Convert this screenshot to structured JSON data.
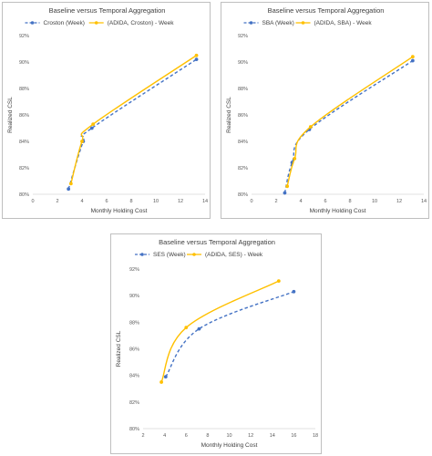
{
  "chart_data": [
    {
      "type": "line",
      "title": "Baseline versus Temporal Aggregation",
      "xlabel": "Monthly Holding Cost",
      "ylabel": "Realized CSL",
      "xlim": [
        0,
        14
      ],
      "ylim": [
        80,
        92
      ],
      "xticks": [
        0,
        2,
        4,
        6,
        8,
        10,
        12,
        14
      ],
      "yticks": [
        80,
        82,
        84,
        86,
        88,
        90,
        92
      ],
      "grid": false,
      "legend_position": "top",
      "series": [
        {
          "name": "Croston (Week)",
          "color": "#4472c4",
          "style": "dashed",
          "x": [
            2.9,
            4.1,
            4.8,
            13.3
          ],
          "y": [
            80.4,
            84.0,
            85.0,
            90.2
          ]
        },
        {
          "name": "(ADIDA, Croston) - Week",
          "color": "#ffc000",
          "style": "solid",
          "x": [
            3.1,
            4.0,
            4.9,
            13.3
          ],
          "y": [
            80.8,
            84.0,
            85.3,
            90.5
          ]
        }
      ]
    },
    {
      "type": "line",
      "title": "Baseline versus Temporal Aggregation",
      "xlabel": "Monthly Holding Cost",
      "ylabel": "Realized CSL",
      "xlim": [
        0,
        14
      ],
      "ylim": [
        80,
        92
      ],
      "xticks": [
        0,
        2,
        4,
        6,
        8,
        10,
        12,
        14
      ],
      "yticks": [
        80,
        82,
        84,
        86,
        88,
        90,
        92
      ],
      "grid": false,
      "legend_position": "top",
      "series": [
        {
          "name": "SBA (Week)",
          "color": "#4472c4",
          "style": "dashed",
          "x": [
            2.7,
            3.3,
            4.7,
            13.1
          ],
          "y": [
            80.1,
            82.4,
            84.9,
            90.1
          ]
        },
        {
          "name": "(ADIDA, SBA) - Week",
          "color": "#ffc000",
          "style": "solid",
          "x": [
            2.9,
            3.5,
            4.8,
            13.1
          ],
          "y": [
            80.6,
            82.7,
            85.1,
            90.4
          ]
        }
      ]
    },
    {
      "type": "line",
      "title": "Baseline versus Temporal Aggregation",
      "xlabel": "Monthly Holding Cost",
      "ylabel": "Realized CSL",
      "xlim": [
        2,
        18
      ],
      "ylim": [
        80,
        92
      ],
      "xticks": [
        2,
        4,
        6,
        8,
        10,
        12,
        14,
        16,
        18
      ],
      "yticks": [
        80,
        82,
        84,
        86,
        88,
        90,
        92
      ],
      "grid": false,
      "legend_position": "top",
      "series": [
        {
          "name": "SES (Week)",
          "color": "#4472c4",
          "style": "dashed",
          "x": [
            4.1,
            7.2,
            16.0
          ],
          "y": [
            83.9,
            87.5,
            90.3
          ]
        },
        {
          "name": "(ADIDA, SES) - Week",
          "color": "#ffc000",
          "style": "solid",
          "x": [
            3.7,
            6.0,
            14.6
          ],
          "y": [
            83.5,
            87.6,
            91.1
          ]
        }
      ]
    }
  ]
}
